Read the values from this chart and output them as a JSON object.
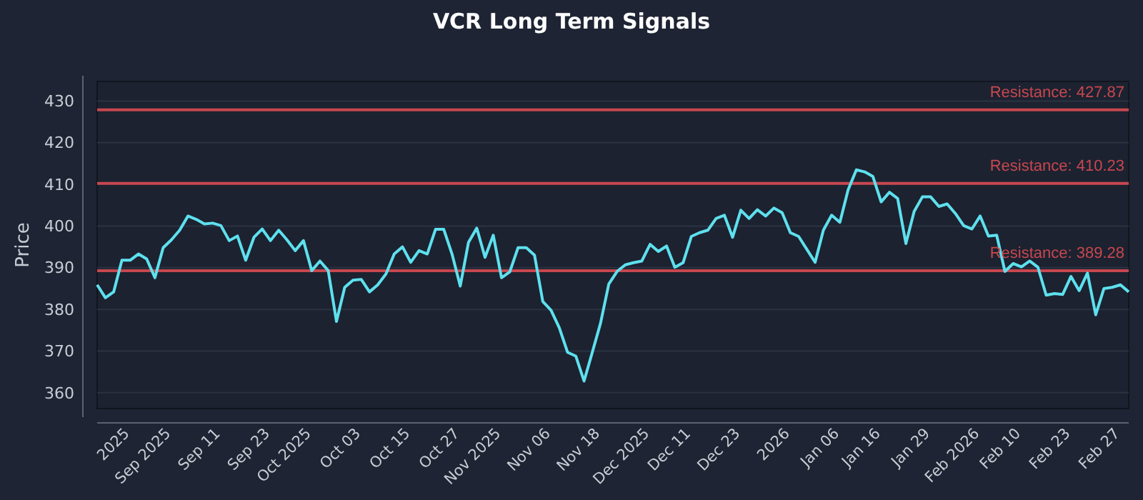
{
  "chart_data": {
    "type": "line",
    "title": "VCR Long Term Signals",
    "ylabel": "Price",
    "categories": [
      null,
      null,
      null,
      null,
      "2025",
      null,
      null,
      null,
      null,
      "Sep 2025",
      null,
      null,
      null,
      null,
      null,
      "Sep 11",
      null,
      null,
      null,
      null,
      null,
      "Sep 23",
      null,
      null,
      null,
      null,
      "Oct 2025",
      null,
      null,
      null,
      null,
      null,
      "Oct 03",
      null,
      null,
      null,
      null,
      null,
      "Oct 15",
      null,
      null,
      null,
      null,
      null,
      "Oct 27",
      null,
      null,
      null,
      null,
      "Nov 2025",
      null,
      null,
      null,
      null,
      null,
      "Nov 06",
      null,
      null,
      null,
      null,
      null,
      "Nov 18",
      null,
      null,
      null,
      null,
      null,
      "Dec 2025",
      null,
      null,
      null,
      null,
      "Dec 11",
      null,
      null,
      null,
      null,
      null,
      "Dec 23",
      null,
      null,
      null,
      null,
      null,
      "2026",
      null,
      null,
      null,
      null,
      null,
      "Jan 06",
      null,
      null,
      null,
      null,
      "Jan 16",
      null,
      null,
      null,
      null,
      null,
      "Jan 29",
      null,
      null,
      null,
      null,
      null,
      "Feb 2026",
      null,
      null,
      null,
      null,
      "Feb 10",
      null,
      null,
      null,
      null,
      null,
      "Feb 23",
      null,
      null,
      null,
      null,
      null,
      "Feb 27",
      null
    ],
    "series": [
      {
        "color": "#5ee0ee",
        "values": [
          385.9,
          382.8,
          384.2,
          391.8,
          391.8,
          393.3,
          392.1,
          387.6,
          394.8,
          396.7,
          399,
          402.4,
          401.6,
          400.5,
          400.7,
          400.1,
          396.5,
          397.6,
          391.8,
          397.3,
          399.3,
          396.5,
          399,
          396.7,
          394.1,
          396.5,
          389.3,
          391.6,
          389.3,
          377.1,
          385.3,
          387,
          387.2,
          384.2,
          385.9,
          388.5,
          393.3,
          395,
          391.3,
          394.1,
          393.3,
          399.2,
          399.2,
          393.3,
          385.6,
          396.1,
          399.5,
          392.5,
          397.8,
          387.6,
          389,
          394.8,
          394.8,
          393,
          381.9,
          379.8,
          375.6,
          369.7,
          368.8,
          362.8,
          369.7,
          376.7,
          386.1,
          389.1,
          390.7,
          391.2,
          391.6,
          395.6,
          393.9,
          395.2,
          390.1,
          391.2,
          397.5,
          398.4,
          399,
          401.8,
          402.6,
          397.3,
          403.8,
          401.8,
          403.9,
          402.4,
          404.3,
          403.2,
          398.4,
          397.5,
          394.4,
          391.3,
          399,
          402.6,
          400.9,
          408.7,
          413.5,
          413,
          411.9,
          405.8,
          408.1,
          406.6,
          395.8,
          403.5,
          407,
          407,
          404.7,
          405.3,
          403,
          400.1,
          399.3,
          402.4,
          397.6,
          397.8,
          389.1,
          391,
          390.2,
          391.6,
          390.1,
          383.4,
          383.8,
          383.6,
          387.9,
          384.5,
          388.7,
          378.7,
          385,
          385.3,
          385.9,
          384.2
        ]
      }
    ],
    "ylim": [
      356.2,
      434.7
    ],
    "yticks": [
      360,
      370,
      380,
      390,
      400,
      410,
      420,
      430
    ],
    "grid": "y",
    "ref_lines": [
      {
        "axis": "y",
        "value": 427.87,
        "label": "Resistance: 427.87",
        "color": "#c8474f"
      },
      {
        "axis": "y",
        "value": 410.23,
        "label": "Resistance: 410.23",
        "color": "#c8474f"
      },
      {
        "axis": "y",
        "value": 389.28,
        "label": "Resistance: 389.28",
        "color": "#c8474f"
      }
    ]
  }
}
